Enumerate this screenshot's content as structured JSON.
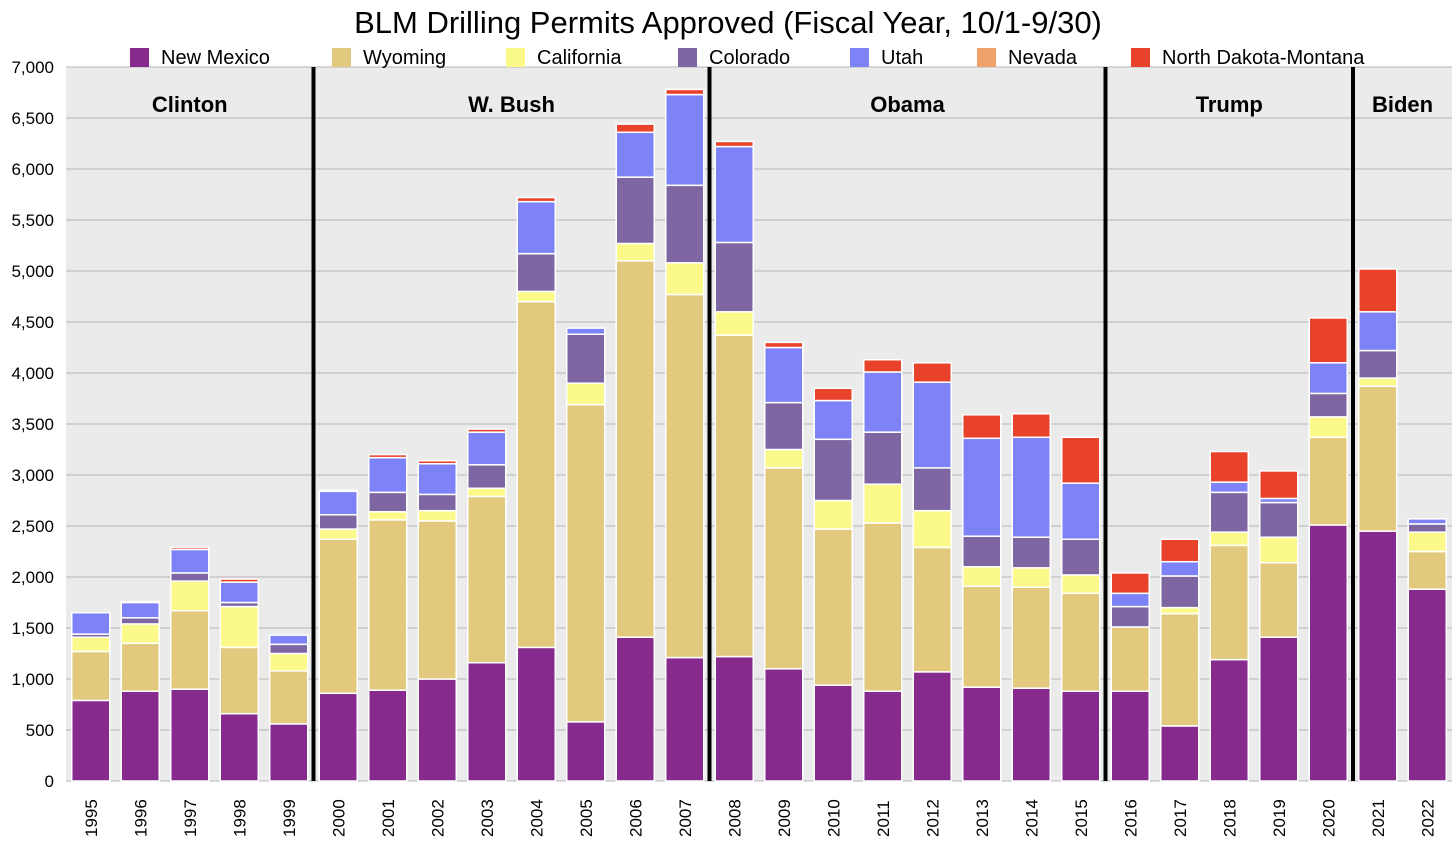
{
  "chart_data": {
    "type": "bar",
    "stacked": true,
    "title": "BLM Drilling Permits Approved (Fiscal Year, 10/1-9/30)",
    "xlabel": "",
    "ylabel": "",
    "ylim": [
      0,
      7000
    ],
    "yticks": [
      0,
      500,
      1000,
      1500,
      2000,
      2500,
      3000,
      3500,
      4000,
      4500,
      5000,
      5500,
      6000,
      6500,
      7000
    ],
    "ytick_labels": [
      "0",
      "500",
      "1,000",
      "1,500",
      "2,000",
      "2,500",
      "3,000",
      "3,500",
      "4,000",
      "4,500",
      "5,000",
      "5,500",
      "6,000",
      "6,500",
      "7,000"
    ],
    "grid": true,
    "legend_position": "top",
    "categories": [
      "1995",
      "1996",
      "1997",
      "1998",
      "1999",
      "2000",
      "2001",
      "2002",
      "2003",
      "2004",
      "2005",
      "2006",
      "2007",
      "2008",
      "2009",
      "2010",
      "2011",
      "2012",
      "2013",
      "2014",
      "2015",
      "2016",
      "2017",
      "2018",
      "2019",
      "2020",
      "2021",
      "2022"
    ],
    "series": [
      {
        "name": "New Mexico",
        "color": "#862A8E",
        "values": [
          790,
          880,
          900,
          660,
          560,
          860,
          890,
          1000,
          1160,
          1310,
          580,
          1410,
          1210,
          1220,
          1100,
          940,
          880,
          1070,
          920,
          910,
          880,
          880,
          540,
          1190,
          1410,
          2510,
          2450,
          1880
        ]
      },
      {
        "name": "Wyoming",
        "color": "#E2C97D",
        "values": [
          480,
          470,
          770,
          650,
          520,
          1510,
          1670,
          1550,
          1630,
          3390,
          3110,
          3690,
          3560,
          3150,
          1970,
          1530,
          1650,
          1220,
          990,
          990,
          960,
          630,
          1100,
          1120,
          730,
          860,
          1420,
          370
        ]
      },
      {
        "name": "California",
        "color": "#FBF98A",
        "values": [
          140,
          190,
          290,
          400,
          170,
          100,
          80,
          100,
          80,
          100,
          210,
          170,
          310,
          230,
          180,
          280,
          380,
          360,
          190,
          190,
          180,
          0,
          60,
          130,
          250,
          200,
          80,
          190
        ]
      },
      {
        "name": "Colorado",
        "color": "#7D66A2",
        "values": [
          30,
          60,
          80,
          40,
          90,
          140,
          190,
          160,
          230,
          370,
          480,
          650,
          760,
          680,
          460,
          600,
          510,
          420,
          300,
          300,
          350,
          200,
          310,
          390,
          340,
          230,
          270,
          80
        ]
      },
      {
        "name": "Utah",
        "color": "#7D82F6",
        "values": [
          210,
          150,
          230,
          200,
          90,
          230,
          340,
          300,
          320,
          510,
          60,
          440,
          890,
          940,
          540,
          380,
          590,
          840,
          960,
          980,
          550,
          130,
          140,
          100,
          40,
          300,
          380,
          50
        ]
      },
      {
        "name": "Nevada",
        "color": "#EFA36B",
        "values": [
          0,
          0,
          0,
          0,
          0,
          0,
          0,
          0,
          0,
          0,
          0,
          0,
          0,
          0,
          0,
          0,
          0,
          0,
          0,
          0,
          0,
          0,
          0,
          0,
          0,
          0,
          0,
          0
        ]
      },
      {
        "name": "North Dakota-Montana",
        "color": "#E8422A",
        "values": [
          0,
          10,
          20,
          30,
          0,
          10,
          30,
          30,
          30,
          40,
          0,
          80,
          50,
          50,
          50,
          120,
          120,
          190,
          230,
          230,
          450,
          200,
          220,
          300,
          270,
          440,
          420,
          0
        ]
      }
    ],
    "eras": [
      {
        "label": "Clinton",
        "start": 0,
        "end": 4
      },
      {
        "label": "W. Bush",
        "start": 5,
        "end": 12
      },
      {
        "label": "Obama",
        "start": 13,
        "end": 20
      },
      {
        "label": "Trump",
        "start": 21,
        "end": 25
      },
      {
        "label": "Biden",
        "start": 26,
        "end": 27
      }
    ]
  }
}
